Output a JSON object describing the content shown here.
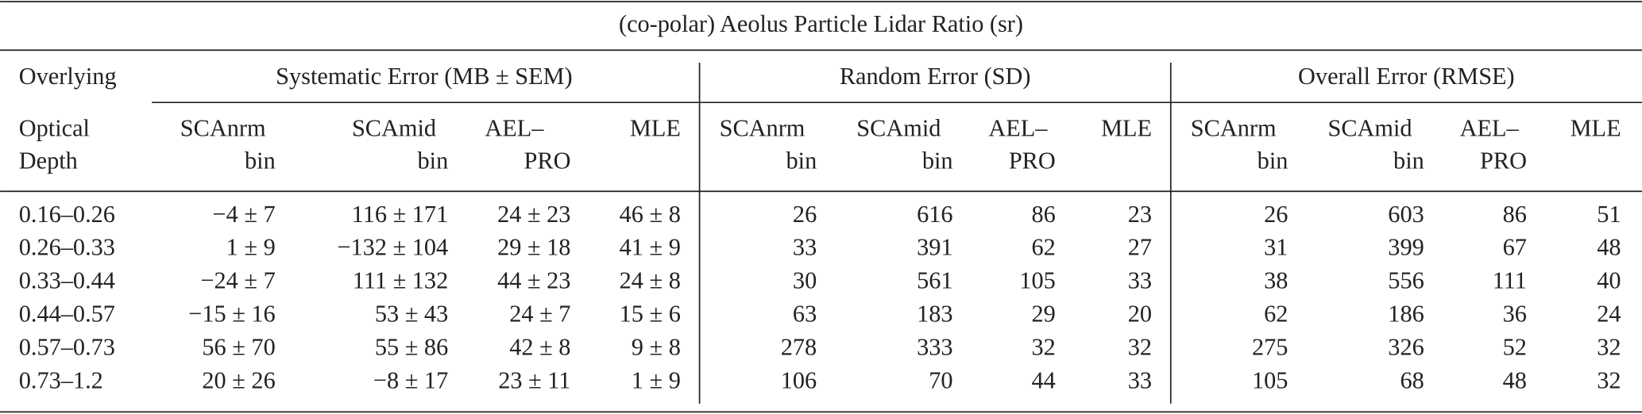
{
  "table": {
    "title": "(co-polar) Aeolus Particle Lidar Ratio (sr)",
    "stub_header": [
      "Overlying",
      "Optical",
      "Depth"
    ],
    "groups": [
      {
        "title": "Systematic Error (MB ± SEM)",
        "columns": [
          [
            "SCAnrm",
            "bin"
          ],
          [
            "SCAmid",
            "bin"
          ],
          [
            "AEL–",
            "PRO"
          ],
          [
            "MLE"
          ]
        ]
      },
      {
        "title": "Random Error (SD)",
        "columns": [
          [
            "SCAnrm",
            "bin"
          ],
          [
            "SCAmid",
            "bin"
          ],
          [
            "AEL–",
            "PRO"
          ],
          [
            "MLE"
          ]
        ]
      },
      {
        "title": "Overall Error (RMSE)",
        "columns": [
          [
            "SCAnrm",
            "bin"
          ],
          [
            "SCAmid",
            "bin"
          ],
          [
            "AEL–",
            "PRO"
          ],
          [
            "MLE"
          ]
        ]
      }
    ],
    "rows": [
      {
        "label": "0.16–0.26",
        "cells": [
          "−4 ± 7",
          "116 ± 171",
          "24 ± 23",
          "46 ± 8",
          26,
          616,
          86,
          23,
          26,
          603,
          86,
          51
        ]
      },
      {
        "label": "0.26–0.33",
        "cells": [
          "1 ± 9",
          "−132 ± 104",
          "29 ± 18",
          "41 ± 9",
          33,
          391,
          62,
          27,
          31,
          399,
          67,
          48
        ]
      },
      {
        "label": "0.33–0.44",
        "cells": [
          "−24 ± 7",
          "111 ± 132",
          "44 ± 23",
          "24 ± 8",
          30,
          561,
          105,
          33,
          38,
          556,
          111,
          40
        ]
      },
      {
        "label": "0.44–0.57",
        "cells": [
          "−15 ± 16",
          "53 ± 43",
          "24 ± 7",
          "15 ± 6",
          63,
          183,
          29,
          20,
          62,
          186,
          36,
          24
        ]
      },
      {
        "label": "0.57–0.73",
        "cells": [
          "56 ± 70",
          "55 ± 86",
          "42 ± 8",
          "9 ± 8",
          278,
          333,
          32,
          32,
          275,
          326,
          52,
          32
        ]
      },
      {
        "label": "0.73–1.2",
        "cells": [
          "20 ± 26",
          "−8 ± 17",
          "23 ± 11",
          "1 ± 9",
          106,
          70,
          44,
          33,
          105,
          68,
          48,
          32
        ]
      }
    ]
  }
}
